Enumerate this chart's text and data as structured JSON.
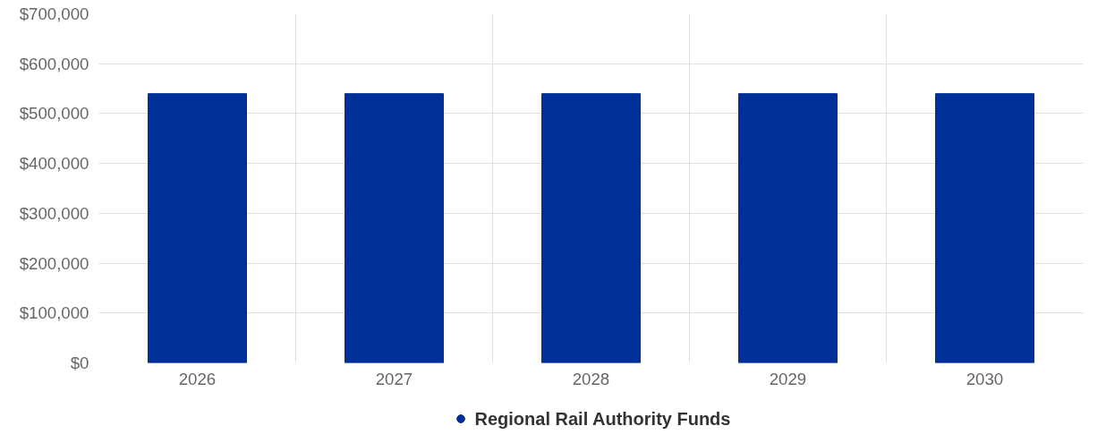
{
  "chart_data": {
    "type": "bar",
    "categories": [
      "2026",
      "2027",
      "2028",
      "2029",
      "2030"
    ],
    "series": [
      {
        "name": "Regional Rail Authority Funds",
        "color": "#002f97",
        "values": [
          540000,
          540000,
          540000,
          540000,
          540000
        ]
      }
    ],
    "ylim": [
      0,
      700000
    ],
    "yticks": [
      {
        "value": 0,
        "label": "$0"
      },
      {
        "value": 100000,
        "label": "$100,000"
      },
      {
        "value": 200000,
        "label": "$200,000"
      },
      {
        "value": 300000,
        "label": "$300,000"
      },
      {
        "value": 400000,
        "label": "$400,000"
      },
      {
        "value": 500000,
        "label": "$500,000"
      },
      {
        "value": 600000,
        "label": "$600,000"
      },
      {
        "value": 700000,
        "label": "$700,000"
      }
    ],
    "grid": true,
    "legend": "bottom"
  }
}
